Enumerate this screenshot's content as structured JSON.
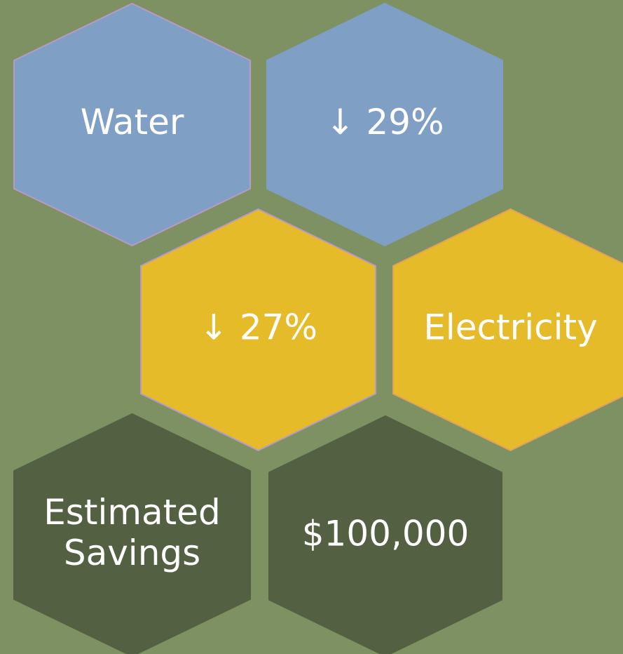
{
  "hexagons": [
    {
      "lines": [
        "Water"
      ]
    },
    {
      "lines": [
        "↓ 29%"
      ]
    },
    {
      "lines": [
        "↓ 27%"
      ]
    },
    {
      "lines": [
        "Electricity"
      ]
    },
    {
      "lines": [
        "Estimated",
        "Savings"
      ]
    },
    {
      "lines": [
        "$100,000"
      ]
    }
  ]
}
